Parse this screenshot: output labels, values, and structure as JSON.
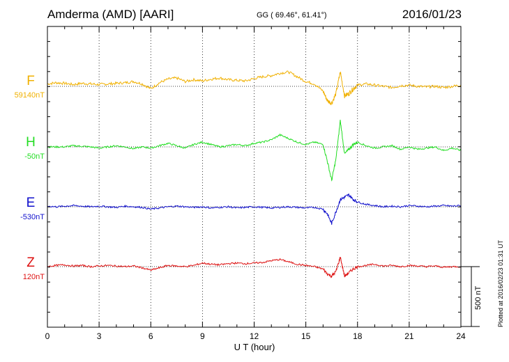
{
  "header": {
    "station": "Amderma (AMD)  [AARI]",
    "coords": "GG ( 69.46°,  61.41°)",
    "date": "2016/01/23"
  },
  "side_note": "Plotted at 2016/02/23 01:31 UT",
  "scale": {
    "label": "500 nT",
    "value_nT": 500
  },
  "chart_data": {
    "type": "line",
    "title": "Amderma (AMD)  [AARI]",
    "xlabel": "U T (hour)",
    "ylabel": "",
    "xlim": [
      0,
      24
    ],
    "xticks": [
      "0",
      "3",
      "6",
      "9",
      "12",
      "15",
      "18",
      "21",
      "24"
    ],
    "grid": true,
    "y_units": "nT offset from channel baseline",
    "series": [
      {
        "name": "F",
        "baseline": "59140nT",
        "color": "#f0b000",
        "x": [
          0,
          0.5,
          1,
          1.5,
          2,
          2.5,
          3,
          3.5,
          4,
          4.5,
          5,
          5.5,
          6,
          6.5,
          7,
          7.5,
          8,
          8.5,
          9,
          9.5,
          10,
          10.5,
          11,
          11.5,
          12,
          12.5,
          13,
          13.5,
          14,
          14.5,
          15,
          15.5,
          16,
          16.25,
          16.5,
          16.75,
          17,
          17.25,
          17.5,
          17.75,
          18,
          18.5,
          19,
          19.5,
          20,
          20.5,
          21,
          21.5,
          22,
          22.5,
          23,
          23.5,
          24
        ],
        "y": [
          20,
          30,
          25,
          15,
          25,
          20,
          15,
          20,
          25,
          30,
          40,
          20,
          -20,
          30,
          60,
          70,
          40,
          55,
          45,
          60,
          70,
          55,
          50,
          45,
          65,
          80,
          90,
          110,
          120,
          80,
          40,
          20,
          -40,
          -120,
          -140,
          -60,
          120,
          -80,
          -60,
          -20,
          10,
          20,
          10,
          0,
          -10,
          5,
          10,
          0,
          -5,
          0,
          -10,
          0,
          10
        ]
      },
      {
        "name": "H",
        "baseline": "-50nT",
        "color": "#22dd22",
        "x": [
          0,
          0.5,
          1,
          1.5,
          2,
          2.5,
          3,
          3.5,
          4,
          4.5,
          5,
          5.5,
          6,
          6.5,
          7,
          7.5,
          8,
          8.5,
          9,
          9.5,
          10,
          10.5,
          11,
          11.5,
          12,
          12.5,
          13,
          13.5,
          14,
          14.5,
          15,
          15.5,
          16,
          16.25,
          16.5,
          16.75,
          17,
          17.25,
          17.5,
          17.75,
          18,
          18.5,
          19,
          19.5,
          20,
          20.5,
          21,
          21.5,
          22,
          22.5,
          23,
          23.5,
          24
        ],
        "y": [
          0,
          0,
          0,
          10,
          5,
          0,
          -10,
          0,
          10,
          0,
          -15,
          0,
          -10,
          10,
          30,
          10,
          -10,
          20,
          40,
          20,
          0,
          10,
          20,
          10,
          30,
          40,
          60,
          100,
          70,
          40,
          20,
          40,
          20,
          -120,
          -280,
          -100,
          220,
          -60,
          -20,
          20,
          40,
          10,
          -10,
          0,
          10,
          -20,
          0,
          -20,
          -10,
          0,
          -30,
          -10,
          -30
        ]
      },
      {
        "name": "E",
        "baseline": "-530nT",
        "color": "#1010cc",
        "x": [
          0,
          0.5,
          1,
          1.5,
          2,
          2.5,
          3,
          3.5,
          4,
          4.5,
          5,
          5.5,
          6,
          6.5,
          7,
          7.5,
          8,
          8.5,
          9,
          9.5,
          10,
          10.5,
          11,
          11.5,
          12,
          12.5,
          13,
          13.5,
          14,
          14.5,
          15,
          15.5,
          16,
          16.25,
          16.5,
          16.75,
          17,
          17.25,
          17.5,
          17.75,
          18,
          18.5,
          19,
          19.5,
          20,
          20.5,
          21,
          21.5,
          22,
          22.5,
          23,
          23.5,
          24
        ],
        "y": [
          5,
          0,
          5,
          10,
          5,
          0,
          5,
          0,
          -5,
          5,
          0,
          -5,
          -20,
          -10,
          0,
          5,
          0,
          -5,
          0,
          -10,
          -5,
          0,
          -10,
          -5,
          0,
          -5,
          -10,
          -5,
          0,
          -5,
          -10,
          -5,
          -20,
          -60,
          -140,
          -40,
          60,
          80,
          100,
          60,
          40,
          20,
          10,
          0,
          5,
          0,
          10,
          5,
          0,
          5,
          10,
          5,
          10
        ]
      },
      {
        "name": "Z",
        "baseline": "120nT",
        "color": "#dd1111",
        "x": [
          0,
          0.5,
          1,
          1.5,
          2,
          2.5,
          3,
          3.5,
          4,
          4.5,
          5,
          5.5,
          6,
          6.5,
          7,
          7.5,
          8,
          8.5,
          9,
          9.5,
          10,
          10.5,
          11,
          11.5,
          12,
          12.5,
          13,
          13.5,
          14,
          14.5,
          15,
          15.5,
          16,
          16.25,
          16.5,
          16.75,
          17,
          17.25,
          17.5,
          17.75,
          18,
          18.5,
          19,
          19.5,
          20,
          20.5,
          21,
          21.5,
          22,
          22.5,
          23,
          23.5,
          24
        ],
        "y": [
          0,
          10,
          15,
          5,
          10,
          0,
          5,
          10,
          5,
          0,
          5,
          -10,
          -30,
          -10,
          10,
          5,
          0,
          10,
          30,
          20,
          15,
          25,
          30,
          25,
          30,
          35,
          50,
          60,
          40,
          20,
          10,
          0,
          -20,
          -60,
          -80,
          -40,
          80,
          -80,
          -50,
          -20,
          0,
          10,
          20,
          5,
          10,
          0,
          10,
          5,
          0,
          5,
          -5,
          0,
          0
        ]
      }
    ]
  }
}
